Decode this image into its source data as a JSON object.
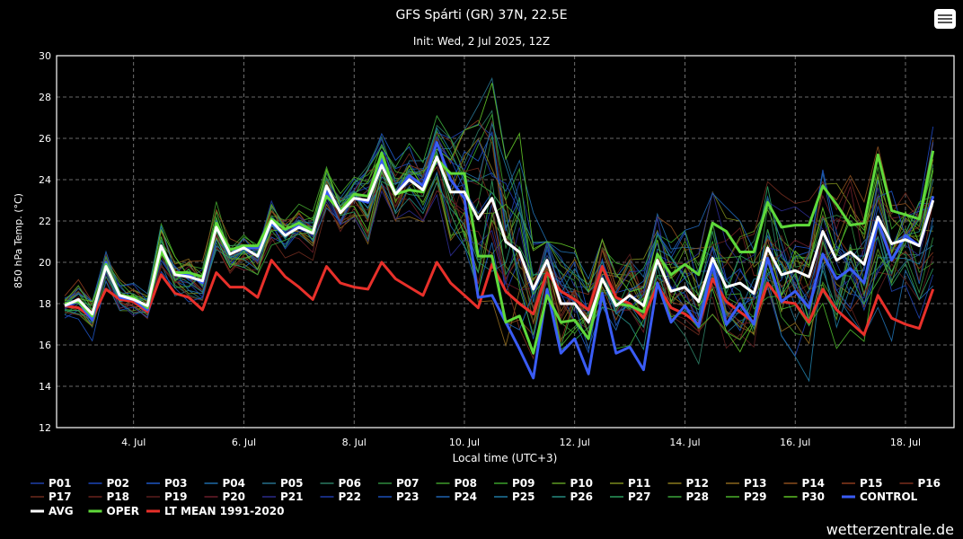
{
  "ui": {
    "credit": "wetterzentrale.de",
    "menu_icon": "hamburger-menu-icon"
  },
  "chart_data": {
    "type": "line",
    "title": "GFS Spárti (GR) 37N, 22.5E",
    "subtitle": "Init: Wed, 2 Jul 2025, 12Z",
    "xlabel": "Local time (UTC+3)",
    "ylabel": "850 hPa Temp. (°C)",
    "ylim": [
      12,
      30
    ],
    "yticks": [
      12,
      14,
      16,
      18,
      20,
      22,
      24,
      26,
      28,
      30
    ],
    "x_time_range": [
      "2025-07-02 18:00",
      "2025-07-18 18:00"
    ],
    "x_step_hours": 6,
    "xticks": [
      "4. Jul",
      "6. Jul",
      "8. Jul",
      "10. Jul",
      "12. Jul",
      "14. Jul",
      "16. Jul",
      "18. Jul"
    ],
    "xtick_dates": [
      "2025-07-04 00:00",
      "2025-07-06 00:00",
      "2025-07-08 00:00",
      "2025-07-10 00:00",
      "2025-07-12 00:00",
      "2025-07-14 00:00",
      "2025-07-16 00:00",
      "2025-07-18 00:00"
    ],
    "grid": true,
    "legend_position": "bottom",
    "background": "#000000",
    "series": [
      {
        "name": "OPER",
        "color": "#5fd93a",
        "width": 3.0,
        "values": [
          18.0,
          18.1,
          17.4,
          19.9,
          18.4,
          18.3,
          17.8,
          20.5,
          19.5,
          19.5,
          19.3,
          21.9,
          20.6,
          20.8,
          20.8,
          22.1,
          21.6,
          21.9,
          21.5,
          23.2,
          22.5,
          23.3,
          23.2,
          25.3,
          23.3,
          23.5,
          23.4,
          25.0,
          24.3,
          24.3,
          20.3,
          20.3,
          17.1,
          17.4,
          15.6,
          18.4,
          17.1,
          17.2,
          16.3,
          19.2,
          18.0,
          17.9,
          17.6,
          20.4,
          19.4,
          19.9,
          19.4,
          21.9,
          21.5,
          20.5,
          20.5,
          22.9,
          21.7,
          21.8,
          21.8,
          23.7,
          22.8,
          21.8,
          21.9,
          25.2,
          22.5,
          22.3,
          22.1,
          25.4
        ]
      },
      {
        "name": "AVG",
        "color": "#ffffff",
        "width": 3.0,
        "values": [
          17.9,
          18.2,
          17.5,
          19.8,
          18.4,
          18.2,
          17.9,
          20.8,
          19.4,
          19.3,
          19.1,
          21.7,
          20.4,
          20.7,
          20.3,
          22.0,
          21.3,
          21.7,
          21.4,
          23.7,
          22.4,
          23.1,
          23.0,
          24.7,
          23.3,
          24.0,
          23.5,
          25.1,
          23.4,
          23.4,
          22.1,
          23.1,
          21.0,
          20.5,
          18.7,
          20.1,
          18.0,
          18.0,
          17.1,
          19.2,
          17.9,
          18.4,
          17.9,
          20.1,
          18.6,
          18.8,
          18.1,
          20.2,
          18.8,
          19.0,
          18.5,
          20.7,
          19.4,
          19.6,
          19.3,
          21.5,
          20.1,
          20.5,
          19.9,
          22.2,
          20.9,
          21.1,
          20.8,
          23.0
        ]
      },
      {
        "name": "CONTROL",
        "color": "#3a5cf5",
        "width": 3.0,
        "values": [
          17.9,
          18.1,
          17.2,
          20.0,
          18.3,
          18.2,
          17.7,
          20.7,
          19.4,
          19.4,
          19.0,
          21.9,
          20.6,
          20.7,
          20.7,
          21.9,
          21.3,
          21.8,
          21.5,
          23.4,
          22.5,
          23.1,
          22.9,
          25.0,
          23.3,
          24.2,
          23.7,
          25.8,
          24.0,
          23.1,
          18.3,
          18.4,
          17.1,
          15.8,
          14.4,
          18.7,
          15.6,
          16.3,
          14.6,
          18.5,
          15.6,
          15.9,
          14.8,
          19.0,
          17.1,
          17.9,
          16.9,
          19.9,
          17.0,
          18.0,
          17.0,
          20.2,
          18.1,
          18.6,
          17.8,
          20.4,
          19.2,
          19.7,
          19.0,
          22.0,
          20.1,
          21.3,
          20.8,
          23.2
        ]
      },
      {
        "name": "LT MEAN 1991-2020",
        "color": "#e8302a",
        "width": 3.0,
        "values": [
          17.9,
          17.8,
          17.3,
          18.7,
          18.2,
          18.1,
          17.6,
          19.4,
          18.5,
          18.3,
          17.7,
          19.5,
          18.8,
          18.8,
          18.3,
          20.1,
          19.3,
          18.8,
          18.2,
          19.8,
          19.0,
          18.8,
          18.7,
          20.0,
          19.2,
          18.8,
          18.4,
          20.0,
          19.0,
          18.4,
          17.8,
          19.9,
          18.6,
          18.0,
          17.5,
          19.5,
          18.6,
          18.2,
          17.7,
          19.8,
          18.3,
          18.0,
          17.3,
          18.9,
          17.8,
          17.5,
          17.0,
          19.2,
          18.1,
          17.6,
          17.1,
          19.0,
          18.1,
          18.0,
          17.1,
          18.7,
          17.7,
          17.1,
          16.5,
          18.4,
          17.3,
          17.0,
          16.8,
          18.7
        ]
      }
    ],
    "ensemble_members": [
      "P01",
      "P02",
      "P03",
      "P04",
      "P05",
      "P06",
      "P07",
      "P08",
      "P09",
      "P10",
      "P11",
      "P12",
      "P13",
      "P14",
      "P15",
      "P16",
      "P17",
      "P18",
      "P19",
      "P20",
      "P21",
      "P22",
      "P23",
      "P24",
      "P25",
      "P26",
      "P27",
      "P28",
      "P29",
      "P30"
    ],
    "ensemble_colors": [
      "#1f3fa8",
      "#1c46b8",
      "#1f57c2",
      "#1f6aa8",
      "#26708c",
      "#2b7a62",
      "#2f8a3e",
      "#3e9a2a",
      "#3aa12a",
      "#5e9a22",
      "#7a8a1e",
      "#8a7a1e",
      "#8a661e",
      "#8a4e1e",
      "#8a3a1e",
      "#7a2f1e",
      "#6e2a1e",
      "#6a221e",
      "#5a1e1e",
      "#6a1e2a",
      "#2a2a8a",
      "#1f3aa8",
      "#1c4fb8",
      "#1f62b0",
      "#1f78a0",
      "#258a80",
      "#2a9a5c",
      "#3aa53a",
      "#4ab02a",
      "#5ebf26"
    ],
    "ensemble_spread": {
      "upper": [
        18.5,
        19.2,
        18.1,
        20.8,
        19.4,
        19.3,
        18.5,
        22.6,
        20.9,
        21.3,
        20.3,
        23.2,
        21.6,
        22.2,
        21.9,
        23.8,
        23.1,
        23.4,
        23.0,
        24.8,
        23.7,
        24.3,
        27.1,
        26.3,
        25.1,
        25.8,
        25.2,
        27.4,
        26.0,
        26.4,
        27.6,
        28.9,
        26.6,
        27.3,
        22.4,
        21.0,
        20.9,
        20.8,
        19.7,
        21.1,
        20.3,
        20.4,
        20.4,
        22.7,
        23.0,
        22.4,
        22.0,
        23.4,
        22.7,
        22.0,
        21.5,
        23.9,
        23.3,
        23.5,
        23.1,
        25.1,
        24.9,
        24.5,
        24.0,
        25.6,
        24.9,
        24.3,
        25.1,
        27.1
      ],
      "lower": [
        17.3,
        17.0,
        15.3,
        18.9,
        17.4,
        17.0,
        16.4,
        19.4,
        18.2,
        18.0,
        17.6,
        19.9,
        19.2,
        19.3,
        19.4,
        20.5,
        20.1,
        20.5,
        20.1,
        21.5,
        20.9,
        21.5,
        20.9,
        22.5,
        21.3,
        21.9,
        21.6,
        22.9,
        18.4,
        17.1,
        14.8,
        17.4,
        15.2,
        14.4,
        13.8,
        15.5,
        13.7,
        14.6,
        14.3,
        15.3,
        14.5,
        15.0,
        14.7,
        15.8,
        15.1,
        14.5,
        14.4,
        15.2,
        14.8,
        14.1,
        13.6,
        15.0,
        14.3,
        14.6,
        13.5,
        15.7,
        14.9,
        15.0,
        15.3,
        17.0,
        16.2,
        16.8,
        16.3,
        17.6
      ]
    },
    "legend": {
      "rows": [
        [
          "P01",
          "P02",
          "P03",
          "P04",
          "P05",
          "P06",
          "P07",
          "P08",
          "P09",
          "P10",
          "P11",
          "P12",
          "P13",
          "P14",
          "P15",
          "P16"
        ],
        [
          "P17",
          "P18",
          "P19",
          "P20",
          "P21",
          "P22",
          "P23",
          "P24",
          "P25",
          "P26",
          "P27",
          "P28",
          "P29",
          "P30",
          "CONTROL"
        ],
        [
          "AVG",
          "OPER",
          "LT MEAN 1991-2020"
        ]
      ]
    }
  }
}
